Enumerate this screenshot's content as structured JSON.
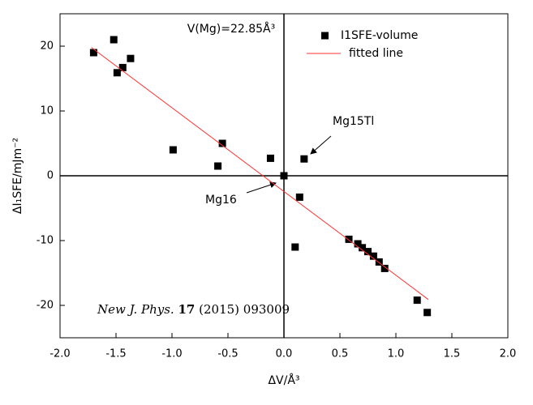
{
  "chart_data": {
    "type": "scatter",
    "x_label": "ΔV/Å³",
    "y_label": "ΔI₁SFE/mJm⁻²",
    "xlim": [
      -2.0,
      2.0
    ],
    "ylim": [
      -25,
      25
    ],
    "xticks": [
      {
        "value": -2,
        "label": "-2.0"
      },
      -1.5,
      {
        "value": -1,
        "label": "-1.0"
      },
      -0.5,
      {
        "value": 0,
        "label": "0.0"
      },
      0.5,
      {
        "value": 1,
        "label": "1.0"
      },
      1.5,
      {
        "value": 2,
        "label": "2.0"
      }
    ],
    "yticks": [
      -20,
      -10,
      0,
      10,
      20
    ],
    "series": [
      {
        "name": "I1SFE-volume",
        "color": "#000000",
        "marker": "square",
        "x": [
          -1.7,
          -1.52,
          -1.49,
          -1.44,
          -1.37,
          -0.99,
          -0.55,
          -0.59,
          -0.12,
          0.0,
          0.18,
          0.14,
          0.1,
          0.58,
          0.66,
          0.7,
          0.75,
          0.8,
          0.85,
          0.9,
          1.19,
          1.28
        ],
        "values": [
          19.0,
          21.0,
          15.9,
          16.7,
          18.1,
          4.0,
          5.0,
          1.5,
          2.7,
          0.0,
          2.6,
          -3.3,
          -11.0,
          -9.8,
          -10.5,
          -11.1,
          -11.7,
          -12.4,
          -13.3,
          -14.3,
          -19.2,
          -21.1
        ]
      },
      {
        "name": "fitted line",
        "color": "#ff3333",
        "marker": "line",
        "x": [
          -1.72,
          1.29
        ],
        "values": [
          19.8,
          -19.1
        ]
      }
    ],
    "annotations": [
      {
        "text": "V(Mg)=22.85Å³"
      },
      {
        "text": "Mg15Tl"
      },
      {
        "text": "Mg16"
      }
    ],
    "citation": {
      "journal": "New J. Phys.",
      "volume": "17",
      "rest": "(2015) 093009"
    }
  }
}
